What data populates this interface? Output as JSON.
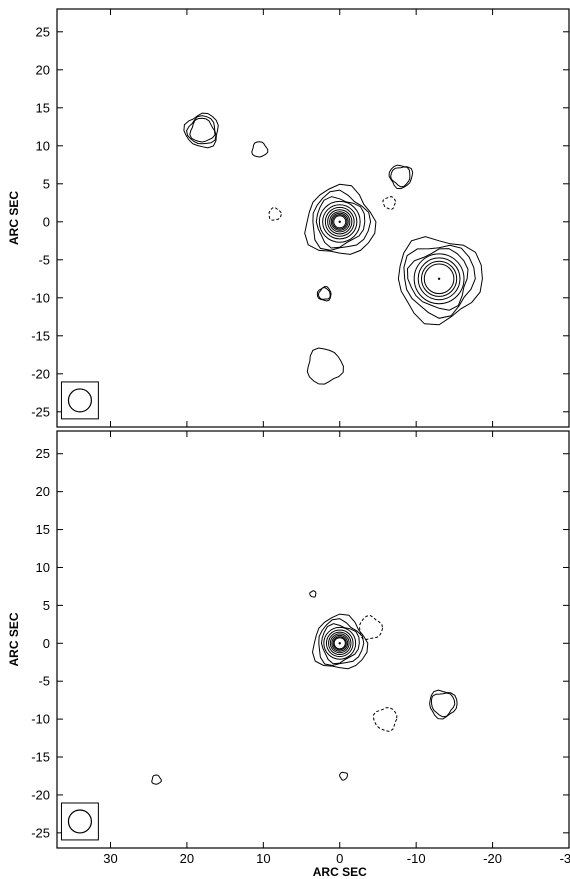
{
  "chart_data": [
    {
      "type": "contour",
      "panel": "top",
      "xlabel": "",
      "ylabel": "ARC SEC",
      "xlim": [
        37,
        -30
      ],
      "ylim": [
        -27,
        28
      ],
      "x_ticks": [
        30,
        20,
        10,
        0,
        -10,
        -20,
        -30
      ],
      "y_ticks": [
        25,
        20,
        15,
        10,
        5,
        0,
        -5,
        -10,
        -15,
        -20,
        -25
      ],
      "y_tick_labels": [
        "25",
        "20",
        "15",
        "10",
        "5",
        "0",
        "-5",
        "-10",
        "-15",
        "-20",
        "-25"
      ],
      "beam": {
        "x": 34,
        "y": -23.5,
        "major": 3,
        "minor": 3
      },
      "sources": [
        {
          "x": 0,
          "y": 0,
          "peak_levels": 11,
          "outer_radius": 4.5
        },
        {
          "x": -13,
          "y": -7.5,
          "peak_levels": 7,
          "outer_radius": 5.5
        },
        {
          "x": 18,
          "y": 12,
          "peak_levels": 3,
          "outer_radius": 2.2
        },
        {
          "x": 10.5,
          "y": 9.5,
          "peak_levels": 1,
          "outer_radius": 1
        },
        {
          "x": -8,
          "y": 6,
          "peak_levels": 2,
          "outer_radius": 1.5
        },
        {
          "x": 2,
          "y": -9.5,
          "peak_levels": 2,
          "outer_radius": 0.9
        },
        {
          "x": 2,
          "y": -19,
          "peak_levels": 1,
          "outer_radius": 2.3
        }
      ],
      "negative_contours": [
        {
          "x": 8.5,
          "y": 1,
          "radius": 0.8
        },
        {
          "x": -6.5,
          "y": 2.5,
          "radius": 0.8
        }
      ]
    },
    {
      "type": "contour",
      "panel": "bottom",
      "xlabel": "ARC SEC",
      "ylabel": "ARC SEC",
      "xlim": [
        37,
        -30
      ],
      "ylim": [
        -27,
        28
      ],
      "x_ticks": [
        30,
        20,
        10,
        0,
        -10,
        -20,
        -30
      ],
      "x_tick_labels": [
        "30",
        "20",
        "10",
        "0",
        "-10",
        "-20",
        "-30"
      ],
      "y_ticks": [
        25,
        20,
        15,
        10,
        5,
        0,
        -5,
        -10,
        -15,
        -20,
        -25
      ],
      "y_tick_labels": [
        "25",
        "20",
        "15",
        "10",
        "5",
        "0",
        "-5",
        "-10",
        "-15",
        "-20",
        "-25"
      ],
      "beam": {
        "x": 34,
        "y": -23.5,
        "major": 3,
        "minor": 3
      },
      "sources": [
        {
          "x": 0,
          "y": 0,
          "peak_levels": 10,
          "outer_radius": 3.5
        },
        {
          "x": -13.5,
          "y": -8,
          "peak_levels": 2,
          "outer_radius": 1.8
        },
        {
          "x": 3.5,
          "y": 6.5,
          "peak_levels": 1,
          "outer_radius": 0.4
        },
        {
          "x": 24,
          "y": -18,
          "peak_levels": 1,
          "outer_radius": 0.6
        },
        {
          "x": -0.5,
          "y": -17.5,
          "peak_levels": 1,
          "outer_radius": 0.5
        }
      ],
      "negative_contours": [
        {
          "x": -4,
          "y": 2,
          "radius": 1.5
        },
        {
          "x": -6,
          "y": -10,
          "radius": 1.5
        }
      ]
    }
  ]
}
